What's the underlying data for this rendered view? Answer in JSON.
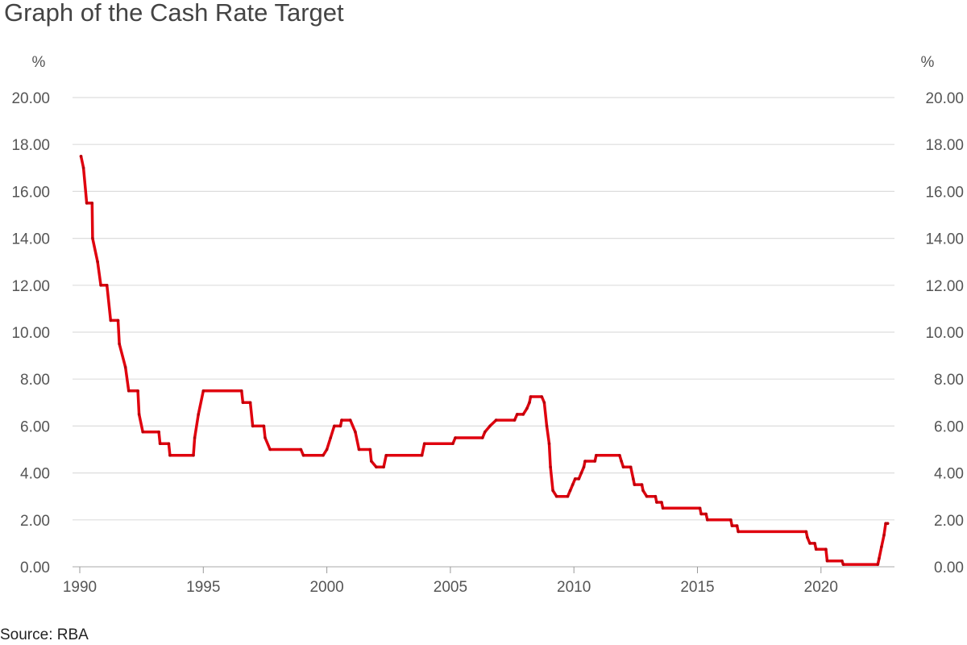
{
  "chart_data": {
    "type": "line",
    "title": "Graph of the Cash Rate Target",
    "source": "Source: RBA",
    "y_unit": "%",
    "xlim": [
      1990,
      2022.8
    ],
    "ylim": [
      0,
      20
    ],
    "x_ticks": [
      "1990",
      "1995",
      "2000",
      "2005",
      "2010",
      "2015",
      "2020"
    ],
    "y_ticks": [
      "0.00",
      "2.00",
      "4.00",
      "6.00",
      "8.00",
      "10.00",
      "12.00",
      "14.00",
      "16.00",
      "18.00",
      "20.00"
    ],
    "grid": true,
    "color": "#e0000e",
    "series": [
      {
        "values": [
          [
            1990.05,
            17.5
          ],
          [
            1990.15,
            17.0
          ],
          [
            1990.28,
            15.5
          ],
          [
            1990.5,
            15.5
          ],
          [
            1990.52,
            14.0
          ],
          [
            1990.72,
            13.0
          ],
          [
            1990.85,
            12.0
          ],
          [
            1991.1,
            12.0
          ],
          [
            1991.25,
            10.5
          ],
          [
            1991.55,
            10.5
          ],
          [
            1991.6,
            9.5
          ],
          [
            1991.85,
            8.5
          ],
          [
            1991.98,
            7.5
          ],
          [
            1992.35,
            7.5
          ],
          [
            1992.4,
            6.5
          ],
          [
            1992.55,
            5.75
          ],
          [
            1993.2,
            5.75
          ],
          [
            1993.25,
            5.25
          ],
          [
            1993.6,
            5.25
          ],
          [
            1993.65,
            4.75
          ],
          [
            1994.6,
            4.75
          ],
          [
            1994.65,
            5.5
          ],
          [
            1994.8,
            6.5
          ],
          [
            1995.0,
            7.5
          ],
          [
            1996.55,
            7.5
          ],
          [
            1996.6,
            7.0
          ],
          [
            1996.9,
            7.0
          ],
          [
            1997.0,
            6.0
          ],
          [
            1997.45,
            6.0
          ],
          [
            1997.5,
            5.5
          ],
          [
            1997.7,
            5.0
          ],
          [
            1998.95,
            5.0
          ],
          [
            1999.05,
            4.75
          ],
          [
            1999.85,
            4.75
          ],
          [
            2000.0,
            5.0
          ],
          [
            2000.15,
            5.5
          ],
          [
            2000.3,
            6.0
          ],
          [
            2000.55,
            6.0
          ],
          [
            2000.6,
            6.25
          ],
          [
            2000.95,
            6.25
          ],
          [
            2001.15,
            5.75
          ],
          [
            2001.3,
            5.0
          ],
          [
            2001.75,
            5.0
          ],
          [
            2001.8,
            4.5
          ],
          [
            2002.0,
            4.25
          ],
          [
            2002.3,
            4.25
          ],
          [
            2002.4,
            4.75
          ],
          [
            2003.85,
            4.75
          ],
          [
            2003.95,
            5.25
          ],
          [
            2005.1,
            5.25
          ],
          [
            2005.2,
            5.5
          ],
          [
            2006.3,
            5.5
          ],
          [
            2006.4,
            5.75
          ],
          [
            2006.6,
            6.0
          ],
          [
            2006.85,
            6.25
          ],
          [
            2007.6,
            6.25
          ],
          [
            2007.7,
            6.5
          ],
          [
            2007.95,
            6.5
          ],
          [
            2008.1,
            6.75
          ],
          [
            2008.2,
            7.0
          ],
          [
            2008.25,
            7.25
          ],
          [
            2008.7,
            7.25
          ],
          [
            2008.8,
            7.0
          ],
          [
            2008.9,
            6.0
          ],
          [
            2009.0,
            5.25
          ],
          [
            2009.05,
            4.25
          ],
          [
            2009.15,
            3.25
          ],
          [
            2009.3,
            3.0
          ],
          [
            2009.75,
            3.0
          ],
          [
            2009.85,
            3.25
          ],
          [
            2009.95,
            3.5
          ],
          [
            2010.05,
            3.75
          ],
          [
            2010.2,
            3.75
          ],
          [
            2010.3,
            4.0
          ],
          [
            2010.4,
            4.25
          ],
          [
            2010.45,
            4.5
          ],
          [
            2010.85,
            4.5
          ],
          [
            2010.9,
            4.75
          ],
          [
            2011.85,
            4.75
          ],
          [
            2011.92,
            4.5
          ],
          [
            2012.0,
            4.25
          ],
          [
            2012.3,
            4.25
          ],
          [
            2012.4,
            3.75
          ],
          [
            2012.45,
            3.5
          ],
          [
            2012.75,
            3.5
          ],
          [
            2012.8,
            3.25
          ],
          [
            2012.95,
            3.0
          ],
          [
            2013.3,
            3.0
          ],
          [
            2013.35,
            2.75
          ],
          [
            2013.55,
            2.75
          ],
          [
            2013.6,
            2.5
          ],
          [
            2015.1,
            2.5
          ],
          [
            2015.15,
            2.25
          ],
          [
            2015.35,
            2.25
          ],
          [
            2015.4,
            2.0
          ],
          [
            2016.35,
            2.0
          ],
          [
            2016.4,
            1.75
          ],
          [
            2016.6,
            1.75
          ],
          [
            2016.65,
            1.5
          ],
          [
            2019.4,
            1.5
          ],
          [
            2019.45,
            1.25
          ],
          [
            2019.55,
            1.0
          ],
          [
            2019.75,
            1.0
          ],
          [
            2019.8,
            0.75
          ],
          [
            2020.2,
            0.75
          ],
          [
            2020.25,
            0.25
          ],
          [
            2020.85,
            0.25
          ],
          [
            2020.9,
            0.1
          ],
          [
            2022.3,
            0.1
          ],
          [
            2022.35,
            0.35
          ],
          [
            2022.45,
            0.85
          ],
          [
            2022.55,
            1.35
          ],
          [
            2022.62,
            1.85
          ],
          [
            2022.7,
            1.85
          ]
        ]
      }
    ]
  }
}
